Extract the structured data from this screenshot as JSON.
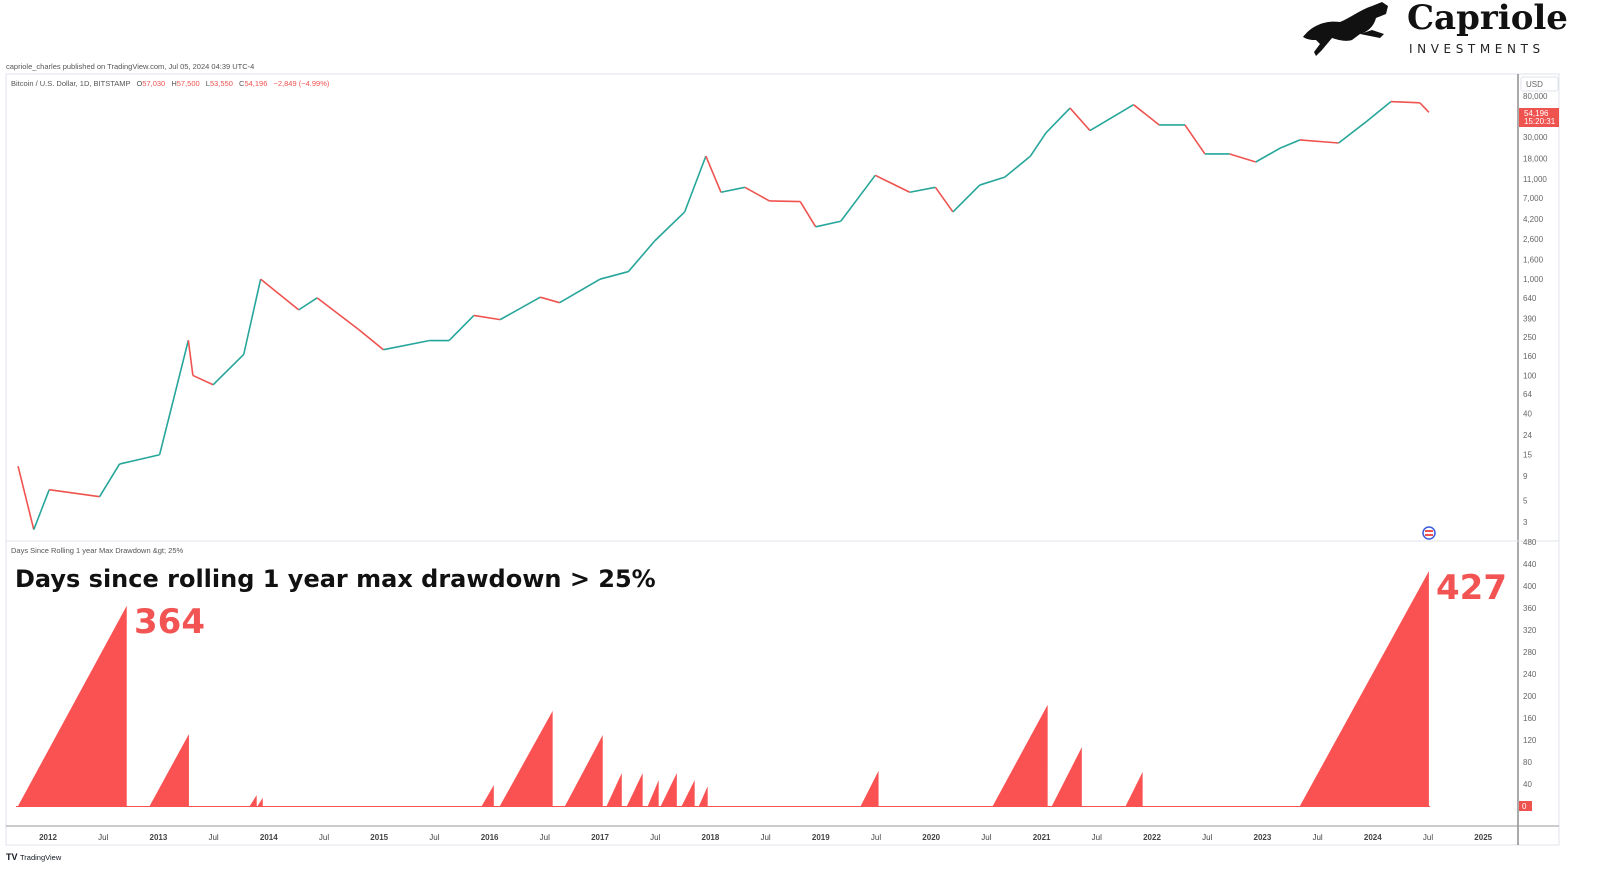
{
  "published_line": "capriole_charles published on TradingView.com, Jul 05, 2024 04:39 UTC-4",
  "logo": {
    "name": "Capriole",
    "tagline": "INVESTMENTS"
  },
  "footer_brand": "TradingView",
  "legend": {
    "symbol": "Bitcoin / U.S. Dollar, 1D, BITSTAMP",
    "o_label": "O",
    "o": "57,030",
    "h_label": "H",
    "h": "57,500",
    "l_label": "L",
    "l": "53,550",
    "c_label": "C",
    "c": "54,196",
    "change": "−2,849 (−4.99%)"
  },
  "price_axis": {
    "currency": "USD",
    "last_price": "54,196",
    "countdown": "15:20:31"
  },
  "indicator": {
    "name": "Days Since Rolling 1 year Max Drawdown &gt; 25%",
    "title": "Days since rolling 1 year max drawdown > 25%",
    "annotation_left": "364",
    "annotation_right": "427",
    "last_value": "0"
  },
  "colors": {
    "up": "#26a69a",
    "down": "#ef5350",
    "area": "#fa5252",
    "annotation": "#f25454"
  },
  "chart_data": [
    {
      "type": "line",
      "title": "Bitcoin / U.S. Dollar, 1D, BITSTAMP",
      "yscale": "log",
      "ylim": [
        2.6,
        95000
      ],
      "y_ticks": [
        "80,000",
        "30,000",
        "18,000",
        "11,000",
        "7,000",
        "4,200",
        "2,600",
        "1,600",
        "1,000",
        "640",
        "390",
        "250",
        "160",
        "100",
        "64",
        "40",
        "24",
        "15",
        "9",
        "5",
        "3"
      ],
      "x_ticks": [
        "2012",
        "Jul",
        "2013",
        "Jul",
        "2014",
        "Jul",
        "2015",
        "Jul",
        "2016",
        "Jul",
        "2017",
        "Jul",
        "2018",
        "Jul",
        "2019",
        "Jul",
        "2020",
        "Jul",
        "2021",
        "Jul",
        "2022",
        "Jul",
        "2023",
        "Jul",
        "2024",
        "Jul",
        "2025"
      ],
      "grid": false,
      "series": [
        {
          "points": [
            [
              "2011-09-24",
              11.4
            ],
            [
              "2011-11-15",
              2.5
            ],
            [
              "2012-01-05",
              6.5
            ],
            [
              "2012-06-20",
              5.5
            ],
            [
              "2012-08-25",
              12
            ],
            [
              "2013-01-05",
              15
            ],
            [
              "2013-04-10",
              232
            ],
            [
              "2013-04-25",
              100
            ],
            [
              "2013-07-01",
              80
            ],
            [
              "2013-10-10",
              165
            ],
            [
              "2013-12-05",
              1000
            ],
            [
              "2014-04-10",
              480
            ],
            [
              "2014-06-10",
              640
            ],
            [
              "2014-10-25",
              300
            ],
            [
              "2015-01-15",
              185
            ],
            [
              "2015-06-15",
              230
            ],
            [
              "2015-08-20",
              230
            ],
            [
              "2015-11-10",
              420
            ],
            [
              "2016-02-05",
              380
            ],
            [
              "2016-06-17",
              650
            ],
            [
              "2016-08-20",
              570
            ],
            [
              "2017-01-01",
              1000
            ],
            [
              "2017-04-05",
              1200
            ],
            [
              "2017-07-01",
              2500
            ],
            [
              "2017-10-08",
              5000
            ],
            [
              "2017-12-17",
              19000
            ],
            [
              "2018-02-05",
              8000
            ],
            [
              "2018-04-25",
              9000
            ],
            [
              "2018-07-15",
              6500
            ],
            [
              "2018-10-25",
              6400
            ],
            [
              "2018-12-15",
              3500
            ],
            [
              "2019-03-08",
              4000
            ],
            [
              "2019-06-30",
              12000
            ],
            [
              "2019-10-22",
              8000
            ],
            [
              "2020-01-15",
              9000
            ],
            [
              "2020-03-13",
              5000
            ],
            [
              "2020-06-10",
              9500
            ],
            [
              "2020-09-01",
              11500
            ],
            [
              "2020-11-25",
              19000
            ],
            [
              "2021-01-15",
              33000
            ],
            [
              "2021-04-05",
              60000
            ],
            [
              "2021-06-10",
              35000
            ],
            [
              "2021-11-01",
              65000
            ],
            [
              "2022-01-25",
              40000
            ],
            [
              "2022-04-20",
              40000
            ],
            [
              "2022-06-25",
              20000
            ],
            [
              "2022-09-15",
              20000
            ],
            [
              "2022-12-10",
              16500
            ],
            [
              "2023-03-01",
              23000
            ],
            [
              "2023-05-05",
              28000
            ],
            [
              "2023-09-10",
              26000
            ],
            [
              "2023-12-05",
              42000
            ],
            [
              "2024-03-01",
              70000
            ],
            [
              "2024-06-05",
              68000
            ],
            [
              "2024-07-05",
              54196
            ]
          ]
        }
      ]
    },
    {
      "type": "area",
      "title": "Days since rolling 1 year max drawdown > 25%",
      "ylim": [
        0,
        480
      ],
      "y_ticks": [
        "480",
        "440",
        "400",
        "360",
        "320",
        "280",
        "240",
        "200",
        "160",
        "120",
        "80",
        "40",
        "0"
      ],
      "grid": false,
      "segments_start_end_peak": [
        [
          "2011-09-24",
          "2012-09-18",
          364
        ],
        [
          "2012-12-03",
          "2013-04-12",
          131
        ],
        [
          "2013-10-30",
          "2013-11-22",
          20
        ],
        [
          "2013-11-25",
          "2013-12-12",
          15
        ],
        [
          "2015-12-06",
          "2016-01-15",
          38
        ],
        [
          "2016-02-04",
          "2016-07-28",
          173
        ],
        [
          "2016-09-07",
          "2017-01-10",
          129
        ],
        [
          "2017-01-23",
          "2017-03-14",
          60
        ],
        [
          "2017-03-31",
          "2017-05-22",
          60
        ],
        [
          "2017-06-08",
          "2017-07-14",
          47
        ],
        [
          "2017-07-21",
          "2017-09-12",
          60
        ],
        [
          "2017-09-28",
          "2017-11-10",
          47
        ],
        [
          "2017-11-24",
          "2017-12-23",
          36
        ],
        [
          "2019-05-13",
          "2019-07-11",
          64
        ],
        [
          "2020-07-23",
          "2021-01-21",
          184
        ],
        [
          "2021-02-04",
          "2021-05-14",
          107
        ],
        [
          "2021-10-06",
          "2021-12-01",
          62
        ],
        [
          "2023-05-05",
          "2024-07-05",
          427
        ]
      ]
    }
  ]
}
